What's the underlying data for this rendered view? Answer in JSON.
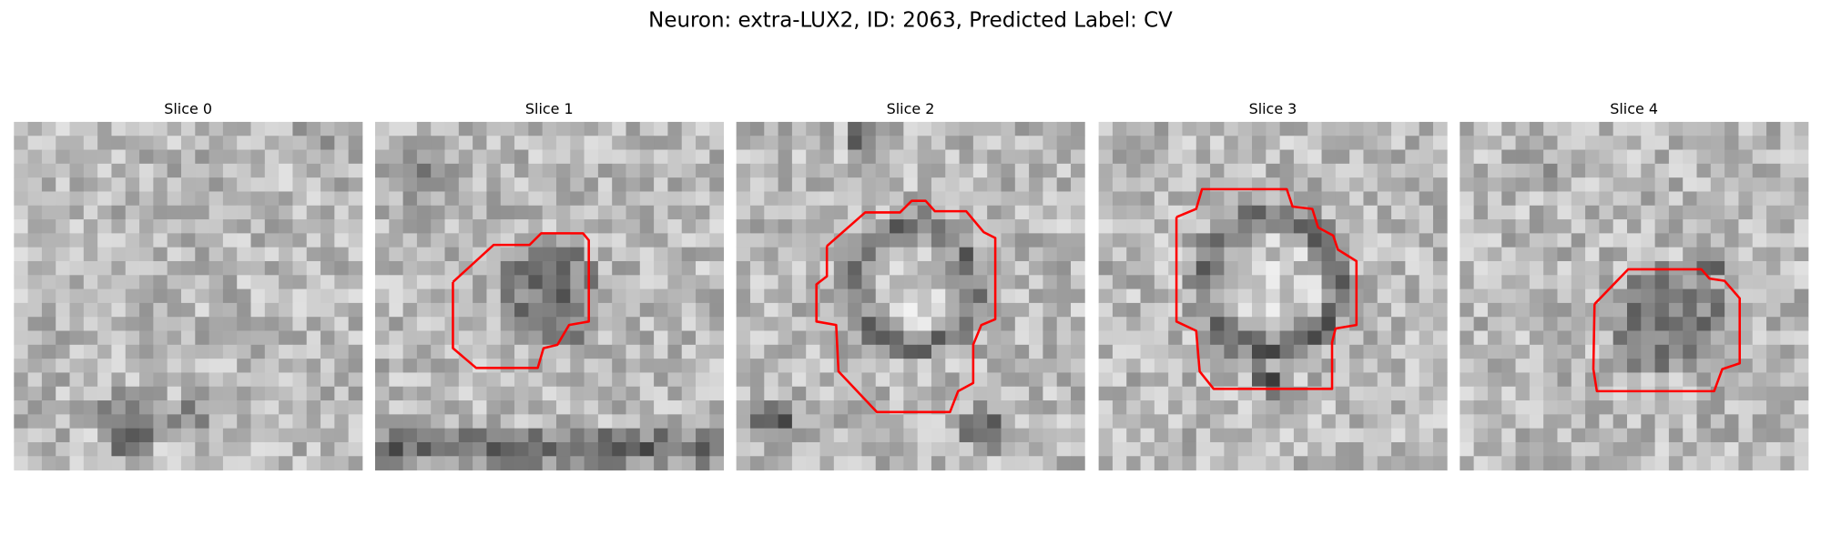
{
  "title": "Neuron: extra-LUX2, ID: 2063, Predicted Label: CV",
  "panels": [
    {
      "title": "Slice 0"
    },
    {
      "title": "Slice 1"
    },
    {
      "title": "Slice 2"
    },
    {
      "title": "Slice 3"
    },
    {
      "title": "Slice 4"
    }
  ]
}
